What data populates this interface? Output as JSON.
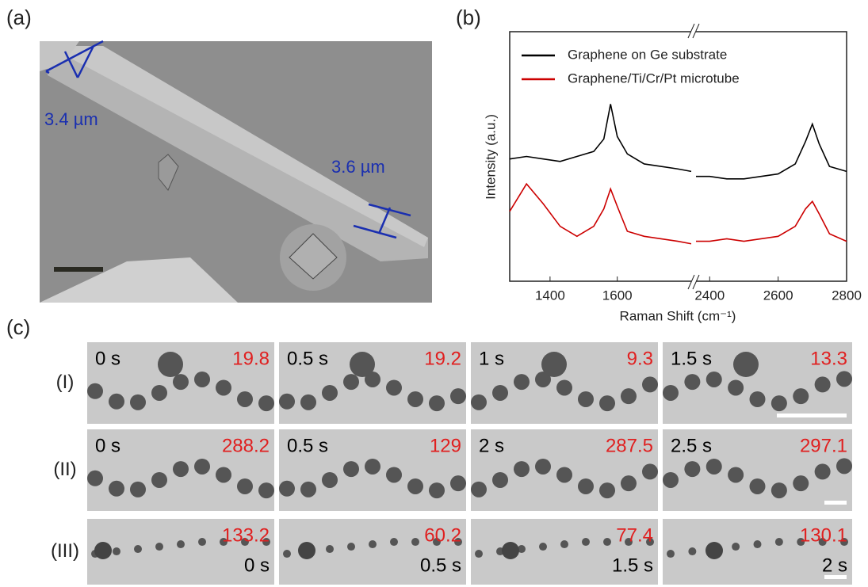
{
  "figure": {
    "panel_a": {
      "label": "(a)",
      "annotations": [
        "3.4 µm",
        "3.6 µm"
      ]
    },
    "panel_b": {
      "label": "(b)"
    },
    "panel_c": {
      "label": "(c)",
      "rows": [
        {
          "label": "(I)",
          "frames": [
            {
              "time": "0 s",
              "value": "19.8"
            },
            {
              "time": "0.5 s",
              "value": "19.2"
            },
            {
              "time": "1 s",
              "value": "9.3"
            },
            {
              "time": "1.5 s",
              "value": "13.3"
            }
          ]
        },
        {
          "label": "(II)",
          "frames": [
            {
              "time": "0 s",
              "value": "288.2"
            },
            {
              "time": "0.5 s",
              "value": "129"
            },
            {
              "time": "2 s",
              "value": "287.5"
            },
            {
              "time": "2.5 s",
              "value": "297.1"
            }
          ]
        },
        {
          "label": "(III)",
          "frames": [
            {
              "time": "0 s",
              "value": "133.2"
            },
            {
              "time": "0.5 s",
              "value": "60.2"
            },
            {
              "time": "1.5 s",
              "value": "77.4"
            },
            {
              "time": "2 s",
              "value": "130.1"
            }
          ]
        }
      ]
    }
  },
  "chart_data": {
    "type": "line",
    "x_label": "Raman Shift (cm⁻¹)",
    "y_label": "Intensity (a.u.)",
    "xlim": [
      1280,
      2800
    ],
    "x_break": [
      1820,
      2360
    ],
    "xticks": [
      1400,
      1600,
      2400,
      2600,
      2800
    ],
    "ylim": [
      0,
      100
    ],
    "legend": "top-left",
    "x": [
      1280,
      1330,
      1380,
      1430,
      1480,
      1530,
      1560,
      1580,
      1600,
      1630,
      1680,
      1730,
      1780,
      1820,
      2000,
      2360,
      2400,
      2450,
      2500,
      2550,
      2600,
      2650,
      2680,
      2700,
      2720,
      2750,
      2800
    ],
    "series": [
      {
        "name": "Graphene on Ge substrate",
        "color": "#000000",
        "values": [
          49,
          50,
          49,
          48,
          50,
          52,
          57,
          71,
          58,
          51,
          47,
          46,
          45,
          44,
          null,
          42,
          42,
          41,
          41,
          42,
          43,
          47,
          56,
          63,
          55,
          46,
          44
        ]
      },
      {
        "name": "Graphene/Ti/Cr/Pt microtube",
        "color": "#cc0000",
        "values": [
          28,
          39,
          31,
          22,
          18,
          22,
          29,
          37,
          30,
          20,
          18,
          17,
          16,
          15,
          null,
          16,
          16,
          17,
          16,
          17,
          18,
          22,
          29,
          32,
          27,
          19,
          16
        ]
      }
    ]
  }
}
